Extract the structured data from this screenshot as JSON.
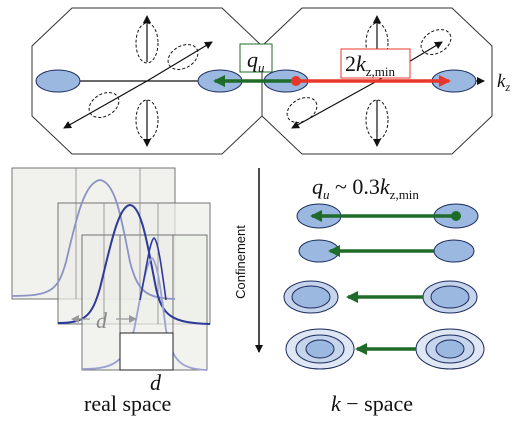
{
  "top_panel": {
    "qu_label": "q",
    "qu_sub": "u",
    "kz_label": "k",
    "kz_sub": "z",
    "kzmin_prefix": "2",
    "kzmin_k": "k",
    "kzmin_sub": "z,min",
    "colors": {
      "green_arrow": "#1e6b2a",
      "red_arrow": "#e8372a",
      "ellipse_fill": "#9ab8e0",
      "ellipse_stroke": "#1b2a5c"
    }
  },
  "bottom_right": {
    "relation_q": "q",
    "relation_q_sub": "u",
    "relation_mid": " ~ 0.3",
    "relation_k": "k",
    "relation_k_sub": "z,min",
    "confinement_label": "Confinement",
    "footer_k": "k",
    "footer_rest": " − space"
  },
  "bottom_left": {
    "d_label_1": "d",
    "d_label_2": "d",
    "d_label_3": "d",
    "footer": "real space"
  }
}
